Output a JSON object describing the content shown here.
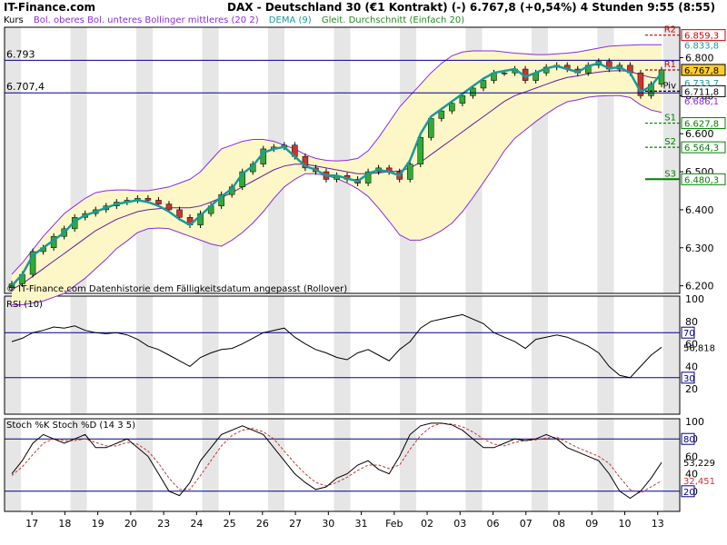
{
  "header": {
    "brand": "IT-Finance.com",
    "title": "DAX - Deutschland 30 (€1 Kontrakt) (-)    6.767,8 (+0,54%)    4 Stunden  9:55 (8:55)"
  },
  "legend": {
    "kurs": "Kurs",
    "bollinger": "Bol. oberes Bol. unteres Bollinger mittleres (20 2)",
    "dema": "DEMA (9)",
    "sma": "Gleit. Durchschnitt (Einfach 20)",
    "colors": {
      "bollinger": "#8a2be2",
      "dema": "#1a9a9a",
      "sma": "#228b22"
    }
  },
  "chart_data": [
    {
      "type": "candlestick",
      "panel": "price",
      "ylim": [
        6180,
        6880
      ],
      "yticks": [
        "6.800",
        "6.700",
        "6.600",
        "6.500",
        "6.400",
        "6.300",
        "6.200"
      ],
      "x_dates": [
        "17",
        "18",
        "19",
        "20",
        "23",
        "24",
        "25",
        "26",
        "27",
        "30",
        "31",
        "Feb",
        "02",
        "03",
        "06",
        "07",
        "08",
        "09",
        "10",
        "13"
      ],
      "close_series": [
        6205,
        6230,
        6290,
        6300,
        6330,
        6350,
        6380,
        6390,
        6400,
        6410,
        6420,
        6425,
        6430,
        6425,
        6415,
        6400,
        6380,
        6360,
        6390,
        6410,
        6440,
        6460,
        6500,
        6520,
        6560,
        6565,
        6570,
        6540,
        6510,
        6500,
        6480,
        6490,
        6480,
        6470,
        6500,
        6510,
        6500,
        6480,
        6520,
        6590,
        6640,
        6660,
        6680,
        6700,
        6720,
        6740,
        6760,
        6760,
        6770,
        6740,
        6760,
        6775,
        6780,
        6770,
        6760,
        6780,
        6790,
        6770,
        6780,
        6760,
        6700,
        6730,
        6768
      ],
      "dema": [
        6200,
        6230,
        6280,
        6300,
        6320,
        6340,
        6370,
        6385,
        6395,
        6405,
        6415,
        6420,
        6425,
        6420,
        6410,
        6395,
        6375,
        6360,
        6385,
        6410,
        6435,
        6455,
        6495,
        6515,
        6550,
        6560,
        6565,
        6540,
        6515,
        6505,
        6490,
        6490,
        6482,
        6475,
        6495,
        6505,
        6500,
        6490,
        6530,
        6600,
        6645,
        6665,
        6685,
        6705,
        6725,
        6745,
        6760,
        6765,
        6770,
        6750,
        6760,
        6772,
        6778,
        6770,
        6762,
        6778,
        6785,
        6772,
        6775,
        6760,
        6710,
        6725,
        6760
      ],
      "boll_mid": [
        6190,
        6205,
        6225,
        6245,
        6265,
        6285,
        6305,
        6325,
        6345,
        6360,
        6375,
        6385,
        6395,
        6400,
        6403,
        6405,
        6405,
        6405,
        6410,
        6420,
        6432,
        6445,
        6460,
        6475,
        6490,
        6505,
        6515,
        6520,
        6520,
        6515,
        6510,
        6505,
        6500,
        6495,
        6495,
        6497,
        6500,
        6502,
        6510,
        6525,
        6545,
        6565,
        6585,
        6605,
        6625,
        6645,
        6665,
        6685,
        6700,
        6710,
        6720,
        6730,
        6740,
        6748,
        6752,
        6758,
        6762,
        6765,
        6766,
        6764,
        6755,
        6748,
        6745
      ],
      "boll_upper": [
        6230,
        6260,
        6295,
        6330,
        6360,
        6390,
        6410,
        6430,
        6445,
        6450,
        6452,
        6452,
        6450,
        6450,
        6455,
        6460,
        6470,
        6480,
        6500,
        6530,
        6560,
        6570,
        6580,
        6585,
        6585,
        6580,
        6570,
        6560,
        6545,
        6535,
        6530,
        6528,
        6530,
        6535,
        6555,
        6590,
        6630,
        6670,
        6700,
        6730,
        6760,
        6785,
        6805,
        6815,
        6818,
        6818,
        6818,
        6815,
        6812,
        6810,
        6808,
        6808,
        6810,
        6812,
        6815,
        6820,
        6825,
        6830,
        6832,
        6833,
        6834,
        6834,
        6834
      ],
      "boll_lower": [
        6150,
        6150,
        6155,
        6160,
        6170,
        6180,
        6200,
        6220,
        6245,
        6270,
        6298,
        6318,
        6340,
        6350,
        6352,
        6350,
        6340,
        6330,
        6320,
        6310,
        6304,
        6320,
        6340,
        6365,
        6395,
        6430,
        6460,
        6480,
        6495,
        6495,
        6490,
        6482,
        6470,
        6455,
        6435,
        6404,
        6370,
        6334,
        6320,
        6320,
        6330,
        6345,
        6365,
        6395,
        6432,
        6472,
        6512,
        6555,
        6588,
        6610,
        6632,
        6652,
        6670,
        6684,
        6689,
        6696,
        6699,
        6700,
        6700,
        6695,
        6676,
        6662,
        6656
      ],
      "horizontal_lines": [
        {
          "label": "6.793",
          "value": 6793
        },
        {
          "label": "6.707,4",
          "value": 6707.4
        }
      ],
      "pivots": [
        {
          "name": "R2",
          "value": 6859.3,
          "label": "6.859,3",
          "color": "#cc0000"
        },
        {
          "name": "R1",
          "value": 6767.8,
          "label": "6.767,8",
          "color": "#cc0000"
        },
        {
          "name": "Piv",
          "value": 6711.8,
          "label": "6.711,8",
          "color": "#000000"
        },
        {
          "name": "S1",
          "value": 6627.8,
          "label": "6.627,8",
          "color": "#008000"
        },
        {
          "name": "S2",
          "value": 6564.3,
          "label": "6.564,3",
          "color": "#008000"
        },
        {
          "name": "S3",
          "value": 6480.3,
          "label": "6.480,3",
          "color": "#008000"
        }
      ],
      "right_labels": [
        "6.833,8",
        "6.733,7",
        "6.686,1"
      ],
      "current_price_label": "6.767,8",
      "footnote": "© IT-Finance.com Datenhistorie dem Fälligkeitsdatum angepasst (Rollover)"
    },
    {
      "type": "line",
      "panel": "rsi",
      "title": "RSI (10)",
      "ylim": [
        0,
        100
      ],
      "yticks": [
        "100",
        "80",
        "60",
        "40",
        "20"
      ],
      "bands": [
        70,
        30
      ],
      "band_labels": [
        "70",
        "30"
      ],
      "last_label": "56,818",
      "values": [
        62,
        65,
        70,
        72,
        75,
        74,
        76,
        72,
        70,
        69,
        70,
        68,
        64,
        58,
        55,
        50,
        45,
        40,
        48,
        52,
        55,
        56,
        60,
        65,
        70,
        72,
        74,
        66,
        60,
        55,
        52,
        48,
        46,
        52,
        55,
        50,
        45,
        55,
        62,
        74,
        80,
        82,
        84,
        86,
        82,
        78,
        70,
        66,
        62,
        56,
        64,
        66,
        68,
        66,
        62,
        58,
        52,
        40,
        32,
        30,
        40,
        50,
        57
      ]
    },
    {
      "type": "line",
      "panel": "stoch",
      "title": "Stoch %K Stoch %D (14 3 5)",
      "ylim": [
        0,
        100
      ],
      "yticks": [
        "100",
        "80",
        "60",
        "40",
        "20"
      ],
      "bands": [
        80,
        20
      ],
      "band_labels": [
        "80",
        "20"
      ],
      "last_labels": [
        "53,229",
        "32,451"
      ],
      "k": [
        40,
        55,
        75,
        85,
        80,
        75,
        80,
        85,
        70,
        70,
        75,
        80,
        70,
        60,
        40,
        20,
        15,
        30,
        55,
        70,
        85,
        90,
        95,
        90,
        85,
        70,
        55,
        40,
        30,
        22,
        25,
        35,
        40,
        50,
        55,
        45,
        40,
        60,
        85,
        95,
        98,
        98,
        96,
        90,
        80,
        70,
        70,
        75,
        80,
        78,
        80,
        85,
        80,
        70,
        65,
        60,
        55,
        40,
        20,
        12,
        20,
        35,
        53
      ],
      "d": [
        38,
        48,
        62,
        75,
        80,
        78,
        78,
        80,
        76,
        72,
        72,
        76,
        74,
        66,
        52,
        35,
        22,
        22,
        38,
        55,
        72,
        84,
        90,
        92,
        88,
        80,
        66,
        52,
        40,
        30,
        26,
        30,
        36,
        44,
        50,
        50,
        46,
        50,
        68,
        84,
        94,
        98,
        97,
        94,
        88,
        80,
        74,
        72,
        76,
        78,
        79,
        81,
        82,
        76,
        70,
        65,
        60,
        52,
        36,
        22,
        18,
        25,
        32
      ]
    },
    {
      "type": "axis",
      "x_labels": [
        "17",
        "18",
        "19",
        "20",
        "23",
        "24",
        "25",
        "26",
        "27",
        "30",
        "31",
        "Feb",
        "02",
        "03",
        "06",
        "07",
        "08",
        "09",
        "10",
        "13"
      ]
    }
  ]
}
